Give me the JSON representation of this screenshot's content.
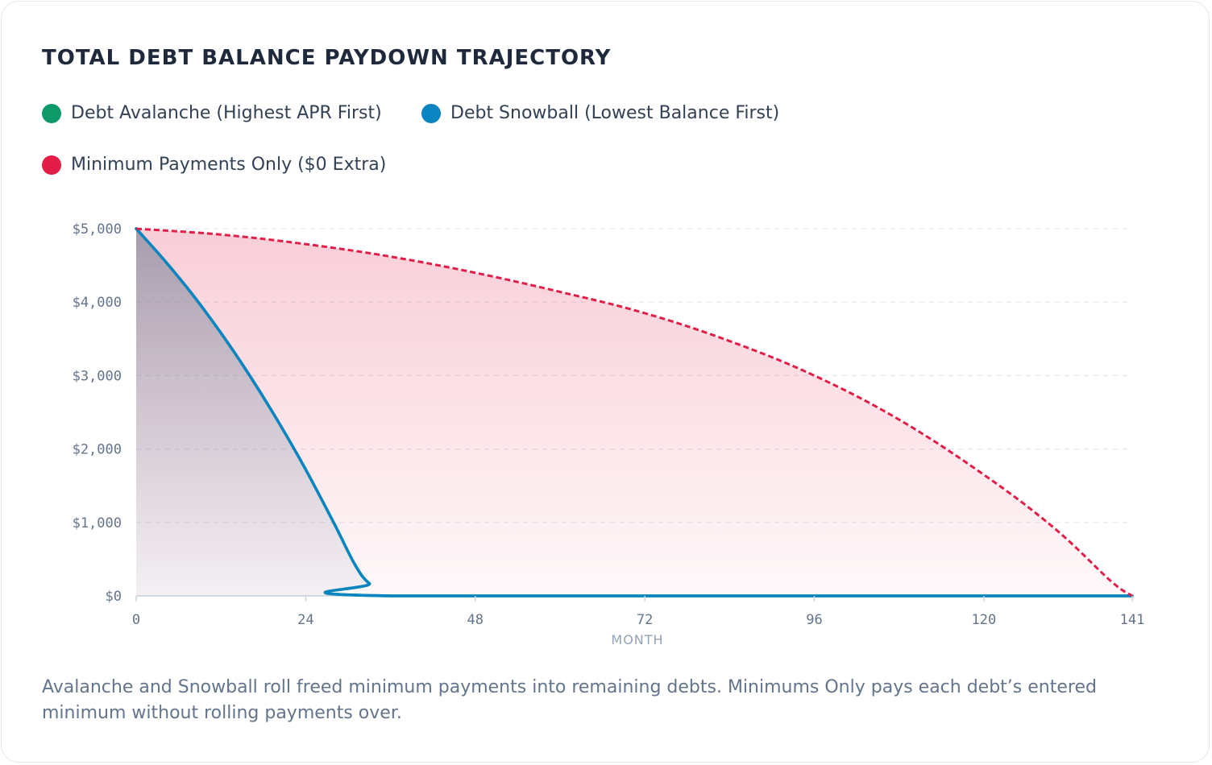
{
  "chart_data": {
    "type": "area",
    "title": "TOTAL DEBT BALANCE PAYDOWN TRAJECTORY",
    "xlabel": "MONTH",
    "ylabel": "",
    "x_ticks": [
      0,
      24,
      48,
      72,
      96,
      120,
      141
    ],
    "x_tick_labels": [
      "0",
      "24",
      "48",
      "72",
      "96",
      "120",
      "141"
    ],
    "y_ticks": [
      0,
      1000,
      2000,
      3000,
      4000,
      5000
    ],
    "y_tick_labels": [
      "$0",
      "$1,000",
      "$2,000",
      "$3,000",
      "$4,000",
      "$5,000"
    ],
    "xlim": [
      0,
      141
    ],
    "ylim": [
      0,
      5000
    ],
    "grid": "horizontal dashed",
    "legend_position": "top-left",
    "series": [
      {
        "name": "Debt Avalanche (Highest APR First)",
        "color": "#0f9a6a",
        "style": "solid",
        "x": [
          0,
          4,
          8,
          12,
          16,
          20,
          24,
          28,
          31,
          33,
          36,
          141
        ],
        "y": [
          5000,
          4570,
          4100,
          3580,
          3010,
          2390,
          1720,
          990,
          420,
          170,
          0,
          0
        ]
      },
      {
        "name": "Debt Snowball (Lowest Balance First)",
        "color": "#0b84c2",
        "style": "solid",
        "x": [
          0,
          4,
          8,
          12,
          16,
          20,
          24,
          28,
          31,
          33,
          36,
          141
        ],
        "y": [
          5000,
          4570,
          4100,
          3580,
          3010,
          2390,
          1720,
          990,
          420,
          170,
          0,
          0
        ]
      },
      {
        "name": "Minimum Payments Only ($0 Extra)",
        "color": "#e11d48",
        "style": "dashed",
        "x": [
          0,
          12,
          24,
          36,
          48,
          60,
          72,
          84,
          96,
          108,
          120,
          130,
          138,
          141
        ],
        "y": [
          5000,
          4920,
          4790,
          4620,
          4400,
          4140,
          3850,
          3470,
          3000,
          2400,
          1650,
          920,
          200,
          0
        ]
      }
    ]
  },
  "legend": {
    "items": [
      {
        "label": "Debt Avalanche (Highest APR First)",
        "color": "#0f9a6a"
      },
      {
        "label": "Debt Snowball (Lowest Balance First)",
        "color": "#0b84c2"
      },
      {
        "label": "Minimum Payments Only ($0 Extra)",
        "color": "#e11d48"
      }
    ]
  },
  "footnote": "Avalanche and Snowball roll freed minimum payments into remaining debts. Minimums Only pays each debt’s entered minimum without rolling payments over."
}
